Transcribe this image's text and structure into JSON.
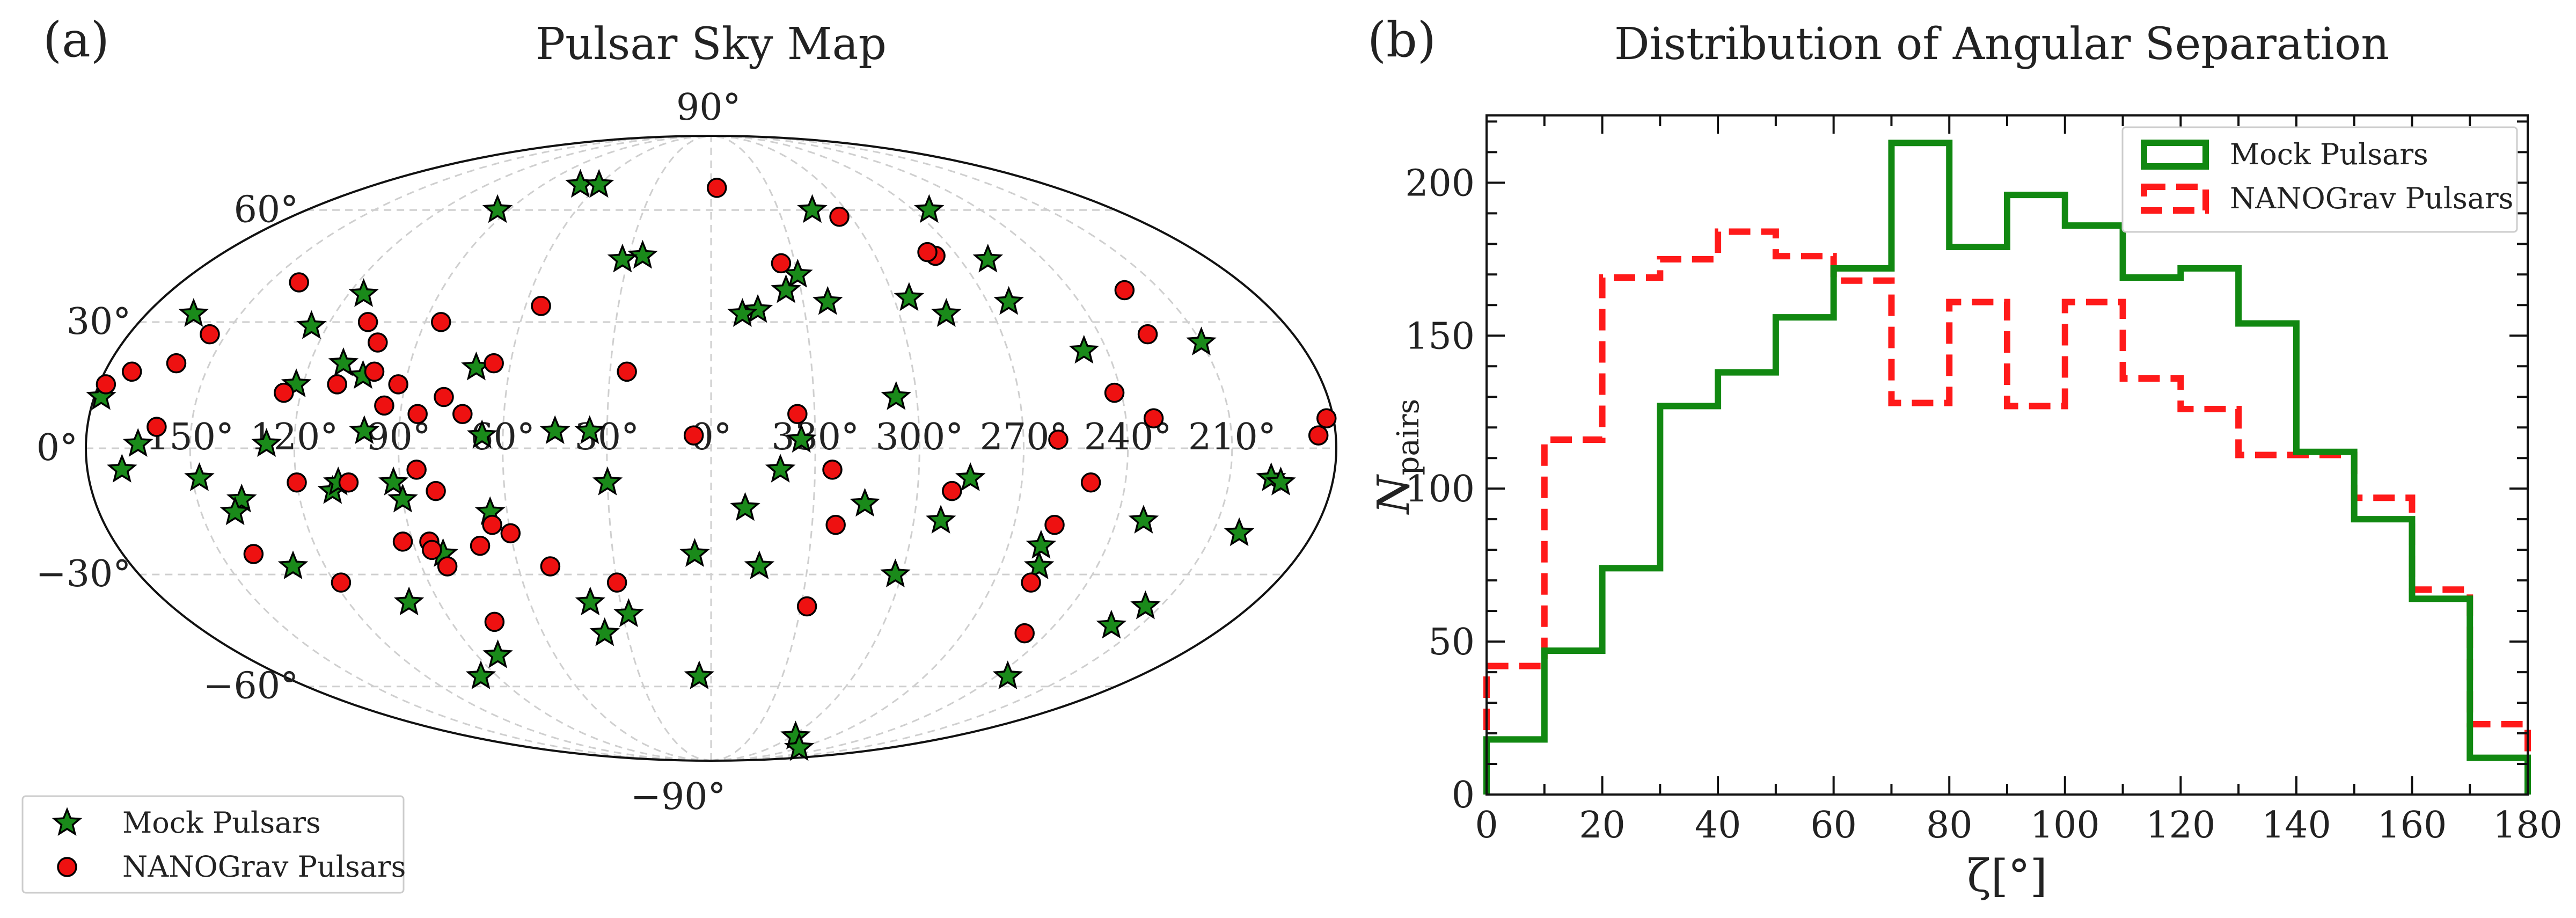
{
  "chart_data": [
    {
      "type": "scatter",
      "panel_label": "(a)",
      "title": "Pulsar Sky Map",
      "projection": "mollweide",
      "lon_tick_labels": [
        "150°",
        "120°",
        "90°",
        "60°",
        "30°",
        "0°",
        "330°",
        "300°",
        "270°",
        "240°",
        "210°"
      ],
      "lat_tick_labels": [
        "90°",
        "60°",
        "30°",
        "0°",
        "−30°",
        "−60°",
        "−90°"
      ],
      "grid": true,
      "legend_placement": "lower-left",
      "series": [
        {
          "name": "Mock Pulsars",
          "marker": "star",
          "color": "#1a8a1a",
          "points": [
            [
              -70,
              68
            ],
            [
              -60,
              68
            ],
            [
              -95,
              60
            ],
            [
              -25,
              47
            ],
            [
              45,
              60
            ],
            [
              97,
              60
            ],
            [
              -115,
              37
            ],
            [
              97,
              35
            ],
            [
              75,
              32
            ],
            [
              -32,
              46
            ],
            [
              100,
              46
            ],
            [
              65,
              36
            ],
            [
              38,
              35
            ],
            [
              -125,
              29
            ],
            [
              -110,
              20
            ],
            [
              -165,
              32
            ],
            [
              -122,
              15
            ],
            [
              -70,
              19
            ],
            [
              15,
              33
            ],
            [
              30,
              42
            ],
            [
              25,
              38
            ],
            [
              10,
              32
            ],
            [
              -178,
              12
            ],
            [
              -103,
              17
            ],
            [
              150,
              25
            ],
            [
              113,
              23
            ],
            [
              -165,
              1
            ],
            [
              -128,
              1
            ],
            [
              -100,
              4
            ],
            [
              -35,
              4
            ],
            [
              -66,
              3
            ],
            [
              -45,
              4
            ],
            [
              26,
              2
            ],
            [
              54,
              12
            ],
            [
              20,
              -5
            ],
            [
              -170,
              -5
            ],
            [
              -148,
              -7
            ],
            [
              -137,
              -12
            ],
            [
              -140,
              -15
            ],
            [
              -110,
              -10
            ],
            [
              -108,
              -8
            ],
            [
              -92,
              -8
            ],
            [
              -90,
              -12
            ],
            [
              -65,
              -15
            ],
            [
              -30,
              -8
            ],
            [
              75,
              -7
            ],
            [
              162,
              -7
            ],
            [
              165,
              -8
            ],
            [
              45,
              -13
            ],
            [
              10,
              -14
            ],
            [
              -130,
              -28
            ],
            [
              -82,
              -25
            ],
            [
              68,
              -17
            ],
            [
              128,
              -17
            ],
            [
              100,
              -23
            ],
            [
              -5,
              -25
            ],
            [
              158,
              -20
            ],
            [
              -28,
              -40
            ],
            [
              -38,
              -45
            ],
            [
              15,
              -28
            ],
            [
              58,
              -30
            ],
            [
              -100,
              -37
            ],
            [
              -40,
              -37
            ],
            [
              102,
              -28
            ],
            [
              140,
              -43
            ],
            [
              145,
              -38
            ],
            [
              -97,
              -57
            ],
            [
              -82,
              -51
            ],
            [
              -5,
              -57
            ],
            [
              63,
              -77
            ],
            [
              90,
              -82
            ],
            [
              125,
              -57
            ]
          ]
        },
        {
          "name": "NANOGrav Pulsars",
          "marker": "circle",
          "color": "#ee1111",
          "points": [
            [
              3,
              67
            ],
            [
              55,
              58
            ],
            [
              -140,
              40
            ],
            [
              -55,
              34
            ],
            [
              82,
              47
            ],
            [
              80,
              48
            ],
            [
              25,
              45
            ],
            [
              -155,
              27
            ],
            [
              -102,
              25
            ],
            [
              -108,
              30
            ],
            [
              -85,
              30
            ],
            [
              -172,
              18
            ],
            [
              -160,
              20
            ],
            [
              -178,
              15
            ],
            [
              -160,
              5
            ],
            [
              -125,
              13
            ],
            [
              -110,
              15
            ],
            [
              -100,
              18
            ],
            [
              -95,
              10
            ],
            [
              -92,
              15
            ],
            [
              -85,
              8
            ],
            [
              -78,
              12
            ],
            [
              -72,
              8
            ],
            [
              -65,
              20
            ],
            [
              -25,
              18
            ],
            [
              138,
              38
            ],
            [
              135,
              27
            ],
            [
              118,
              13
            ],
            [
              128,
              7
            ],
            [
              175,
              3
            ],
            [
              178,
              7
            ],
            [
              -120,
              -8
            ],
            [
              -105,
              -8
            ],
            [
              -85,
              -5
            ],
            [
              -80,
              -10
            ],
            [
              -65,
              -18
            ],
            [
              -70,
              -23
            ],
            [
              -60,
              -20
            ],
            [
              -85,
              -22
            ],
            [
              -82,
              -28
            ],
            [
              -50,
              -28
            ],
            [
              -30,
              -32
            ],
            [
              -5,
              3
            ],
            [
              35,
              -5
            ],
            [
              25,
              8
            ],
            [
              70,
              -10
            ],
            [
              100,
              2
            ],
            [
              102,
              -18
            ],
            [
              110,
              -8
            ],
            [
              37,
              -18
            ],
            [
              102,
              -32
            ],
            [
              112,
              -45
            ],
            [
              -140,
              -25
            ],
            [
              -118,
              -32
            ],
            [
              -85,
              -24
            ],
            [
              -75,
              -42
            ],
            [
              32,
              -38
            ],
            [
              -93,
              -22
            ]
          ]
        }
      ]
    },
    {
      "type": "histogram",
      "panel_label": "(b)",
      "title": "Distribution of Angular Separation",
      "xlabel": "ζ[°]",
      "ylabel_main": "N",
      "ylabel_sub": "pairs",
      "xlim": [
        0,
        180
      ],
      "ylim": [
        0,
        222
      ],
      "x_ticks": [
        0,
        20,
        40,
        60,
        80,
        100,
        120,
        140,
        160,
        180
      ],
      "y_ticks": [
        0,
        50,
        100,
        150,
        200
      ],
      "bin_edges": [
        0,
        10,
        20,
        30,
        40,
        50,
        60,
        70,
        80,
        90,
        100,
        110,
        120,
        130,
        140,
        150,
        160,
        170,
        180
      ],
      "legend_placement": "upper-right",
      "series": [
        {
          "name": "Mock Pulsars",
          "color": "#118811",
          "style": "solid",
          "values": [
            18,
            47,
            74,
            127,
            138,
            156,
            172,
            213,
            179,
            196,
            186,
            169,
            172,
            154,
            112,
            90,
            64,
            12
          ]
        },
        {
          "name": "NANOGrav Pulsars",
          "color": "#ff1a1a",
          "style": "dashed",
          "values": [
            42,
            116,
            169,
            175,
            184,
            176,
            168,
            128,
            161,
            127,
            161,
            136,
            126,
            111,
            111,
            97,
            67,
            23
          ]
        }
      ]
    }
  ]
}
